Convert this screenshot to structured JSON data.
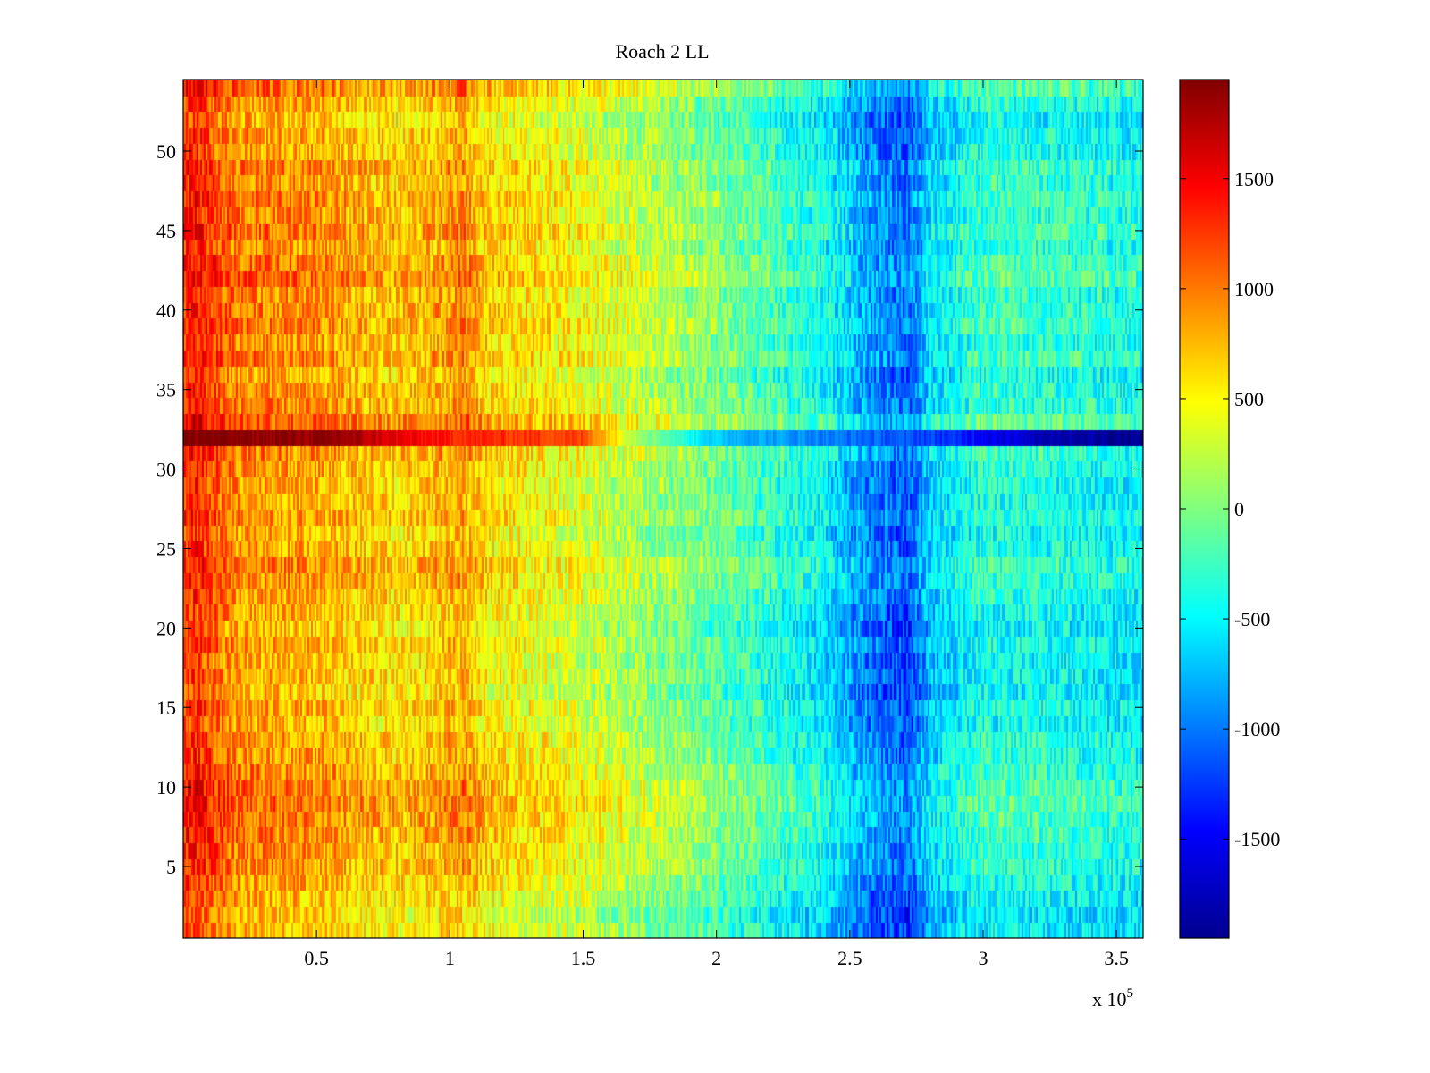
{
  "chart_data": {
    "type": "heatmap",
    "title": "Roach 2 LL",
    "xlabel": "",
    "ylabel": "",
    "x_multiplier_label": "x 10",
    "x_multiplier_exponent": "5",
    "xlim": [
      0,
      360000
    ],
    "ylim": [
      0.5,
      54.5
    ],
    "x_ticks": [
      50000,
      100000,
      150000,
      200000,
      250000,
      300000,
      350000
    ],
    "x_tick_labels": [
      "0.5",
      "1",
      "1.5",
      "2",
      "2.5",
      "3",
      "3.5"
    ],
    "y_ticks": [
      5,
      10,
      15,
      20,
      25,
      30,
      35,
      40,
      45,
      50
    ],
    "y_tick_labels": [
      "5",
      "10",
      "15",
      "20",
      "25",
      "30",
      "35",
      "40",
      "45",
      "50"
    ],
    "rows": 54,
    "colormap": "jet",
    "clim": [
      -1950,
      1950
    ],
    "colorbar_ticks": [
      1500,
      1000,
      500,
      0,
      -500,
      -1000,
      -1500
    ],
    "colorbar_tick_labels": [
      "1500",
      "1000",
      "500",
      "0",
      "-500",
      "-1000",
      "-1500"
    ],
    "column_profile": {
      "x": [
        0,
        5000,
        20000,
        50000,
        80000,
        95000,
        105000,
        115000,
        150000,
        200000,
        240000,
        255000,
        265000,
        272000,
        280000,
        300000,
        330000,
        360000
      ],
      "value": [
        1200,
        1300,
        900,
        800,
        600,
        700,
        850,
        550,
        350,
        -100,
        -500,
        -900,
        -1050,
        -1150,
        -700,
        -350,
        -400,
        -500
      ]
    },
    "row_offsets": {
      "rows": [
        1,
        5,
        8,
        10,
        14,
        20,
        24,
        26,
        32,
        38,
        42,
        44,
        48,
        52,
        54
      ],
      "value": [
        -150,
        0,
        150,
        200,
        -50,
        -100,
        100,
        0,
        0,
        100,
        200,
        150,
        100,
        0,
        150
      ]
    },
    "highlight_row": {
      "row": 32,
      "x": [
        0,
        60000,
        80000,
        100000,
        150000,
        170000,
        200000,
        260000,
        280000,
        320000,
        360000
      ],
      "value": [
        1950,
        1850,
        1550,
        1350,
        1200,
        200,
        -700,
        -1100,
        -1200,
        -1700,
        -1900
      ]
    },
    "colors": {
      "axis": "#000000",
      "background": "#ffffff"
    }
  }
}
